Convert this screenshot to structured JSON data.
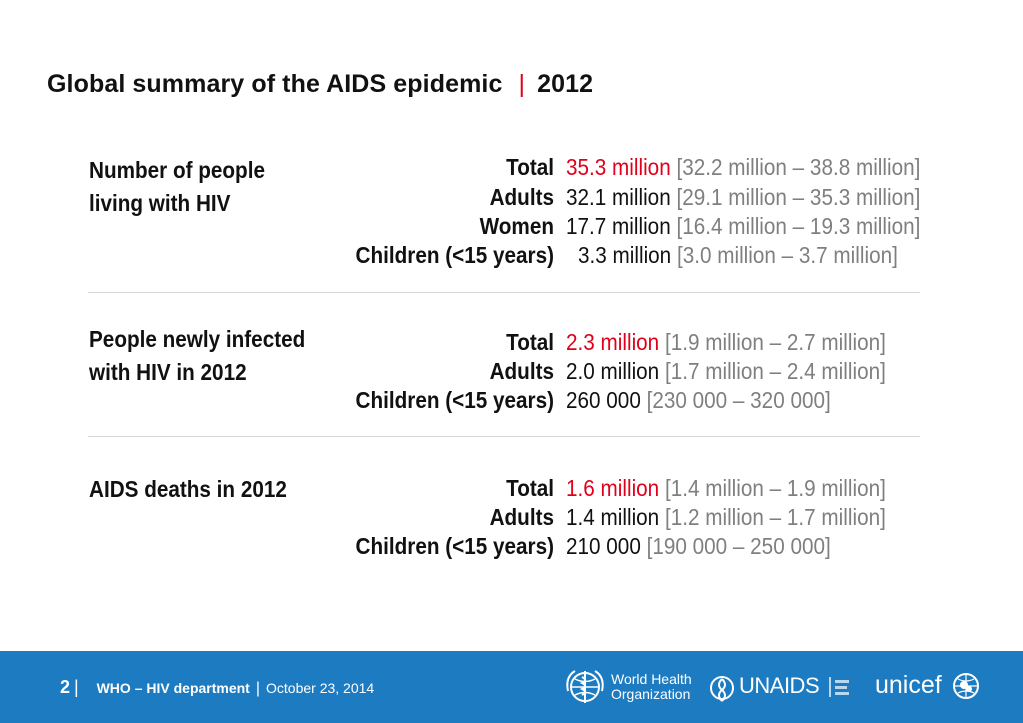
{
  "title": {
    "main": "Global summary of the AIDS epidemic",
    "separator": "|",
    "year": "2012"
  },
  "sections": [
    {
      "label_line1": "Number of people",
      "label_line2": "living with HIV",
      "rows": [
        {
          "label": "Total",
          "value": "35.3 million",
          "range": "[32.2 million – 38.8 million]"
        },
        {
          "label": "Adults",
          "value": "32.1 million",
          "range": "[29.1 million – 35.3 million]"
        },
        {
          "label": "Women",
          "value": "17.7 million",
          "range": "[16.4 million – 19.3 million]"
        },
        {
          "label": "Children (<15 years)",
          "value": "3.3 million",
          "range": "[3.0 million – 3.7 million]"
        }
      ]
    },
    {
      "label_line1": "People newly infected",
      "label_line2": "with HIV in 2012",
      "rows": [
        {
          "label": "Total",
          "value": "2.3 million",
          "range": "[1.9 million – 2.7 million]"
        },
        {
          "label": "Adults",
          "value": "2.0 million",
          "range": "[1.7 million – 2.4 million]"
        },
        {
          "label": "Children (<15 years)",
          "value": "260 000",
          "range": "[230 000 – 320 000]"
        }
      ]
    },
    {
      "label_line1": "AIDS deaths in 2012",
      "label_line2": "",
      "rows": [
        {
          "label": "Total",
          "value": "1.6 million",
          "range": "[1.4 million – 1.9 million]"
        },
        {
          "label": "Adults",
          "value": "1.4 million",
          "range": "[1.2 million – 1.7 million]"
        },
        {
          "label": "Children (<15 years)",
          "value": "210 000",
          "range": "[190 000 – 250 000]"
        }
      ]
    }
  ],
  "footer": {
    "page_number": "2",
    "department": "WHO – HIV department",
    "date": "October 23, 2014",
    "logo_who_line1": "World Health",
    "logo_who_line2": "Organization",
    "logo_unaids": "UNAIDS",
    "logo_unicef": "unicef"
  },
  "colors": {
    "accent_red": "#e0001b",
    "range_gray": "#7f7f7f",
    "footer_blue": "#1d7bc2"
  },
  "icons": [
    "who-emblem-icon",
    "unaids-ribbon-icon",
    "unicef-emblem-icon"
  ]
}
